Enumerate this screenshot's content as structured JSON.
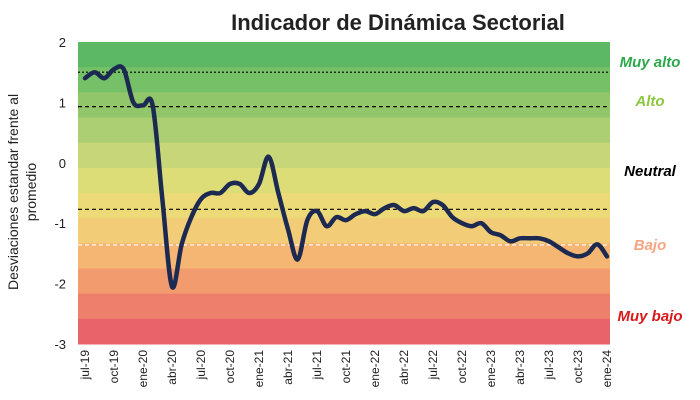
{
  "chart_data": {
    "type": "line",
    "title": "Indicador de Dinámica Sectorial",
    "y_label": [
      "Desviaciones estandar frente al",
      "promedio"
    ],
    "categories": [
      "jul-19",
      null,
      null,
      "oct-19",
      null,
      null,
      "ene-20",
      null,
      null,
      "abr-20",
      null,
      null,
      "jul-20",
      null,
      null,
      "oct-20",
      null,
      null,
      "ene-21",
      null,
      null,
      "abr-21",
      null,
      null,
      "jul-21",
      null,
      null,
      "oct-21",
      null,
      null,
      "ene-22",
      null,
      null,
      "abr-22",
      null,
      null,
      "jul-22",
      null,
      null,
      "oct-22",
      null,
      null,
      "ene-23",
      null,
      null,
      "abr-23",
      null,
      null,
      "jul-23",
      null,
      null,
      "oct-23",
      null,
      null,
      "ene-24"
    ],
    "series": [
      {
        "color": "#1c2951",
        "values": [
          1.4,
          1.5,
          1.4,
          1.55,
          1.55,
          1.0,
          0.95,
          0.95,
          -0.6,
          -2.05,
          -1.35,
          -0.9,
          -0.6,
          -0.5,
          -0.5,
          -0.35,
          -0.35,
          -0.5,
          -0.35,
          0.1,
          -0.5,
          -1.1,
          -1.6,
          -0.95,
          -0.8,
          -1.05,
          -0.9,
          -0.95,
          -0.85,
          -0.8,
          -0.85,
          -0.75,
          -0.7,
          -0.8,
          -0.75,
          -0.8,
          -0.65,
          -0.7,
          -0.9,
          -1.0,
          -1.05,
          -1.0,
          -1.15,
          -1.2,
          -1.3,
          -1.25,
          -1.25,
          -1.25,
          -1.3,
          -1.4,
          -1.5,
          -1.55,
          -1.5,
          -1.35,
          -1.55
        ]
      }
    ],
    "ylim": [
      -3,
      2
    ],
    "yticks": [
      -3,
      -2,
      -1,
      0,
      1,
      2
    ],
    "reference_lines": [
      {
        "value": 1.5,
        "style": "dotted",
        "color": "#000000"
      },
      {
        "value": 0.93,
        "style": "dashed",
        "color": "#000000"
      },
      {
        "value": -0.77,
        "style": "dashed",
        "color": "#000000"
      },
      {
        "value": -1.36,
        "style": "dashed",
        "color": "#ffffff"
      }
    ],
    "annotations": [
      {
        "text": "Muy alto",
        "color": "#2ca84a"
      },
      {
        "text": "Alto",
        "color": "#8cc63f"
      },
      {
        "text": "Neutral",
        "color": "#000000"
      },
      {
        "text": "Bajo",
        "color": "#f4a582"
      },
      {
        "text": "Muy bajo",
        "color": "#d7191c"
      }
    ]
  }
}
